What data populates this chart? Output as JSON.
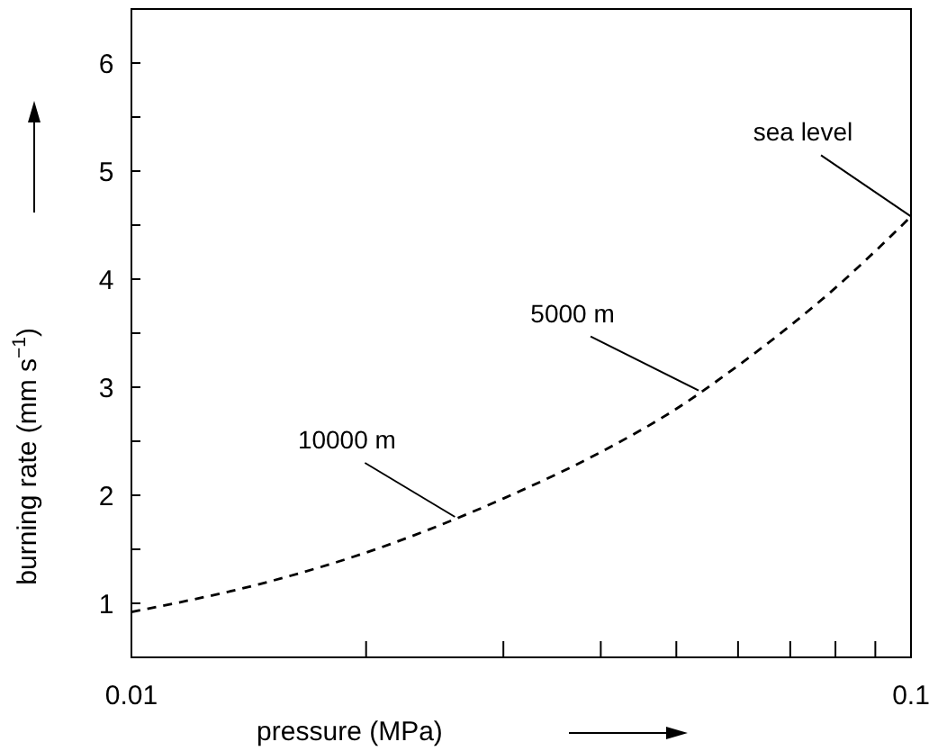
{
  "chart_data": {
    "type": "line",
    "xlabel": "pressure (MPa)",
    "ylabel": "burning rate (mm s$^{−1}$)",
    "log": "x",
    "xlim": [
      0.01,
      0.1
    ],
    "ylim": [
      0.5,
      6.5
    ],
    "xticks": [
      0.01,
      {
        "value": 0.02,
        "label": null
      },
      {
        "value": 0.03,
        "label": null
      },
      {
        "value": 0.04,
        "label": null
      },
      {
        "value": 0.05,
        "label": null
      },
      {
        "value": 0.06,
        "label": null
      },
      {
        "value": 0.07,
        "label": null
      },
      {
        "value": 0.08,
        "label": null
      },
      {
        "value": 0.09,
        "label": null
      },
      0.1
    ],
    "yticks": [
      1,
      {
        "value": 1.5,
        "label": null
      },
      2,
      {
        "value": 2.5,
        "label": null
      },
      3,
      {
        "value": 3.5,
        "label": null
      },
      4,
      {
        "value": 4.5,
        "label": null
      },
      5,
      {
        "value": 5.5,
        "label": null
      },
      6
    ],
    "marker": "none",
    "line_style": "dashed",
    "series": [
      {
        "color": "#000000",
        "x": [
          0.01,
          0.015,
          0.02,
          0.03,
          0.04,
          0.05,
          0.06,
          0.07,
          0.08,
          0.09,
          0.1
        ],
        "values": [
          0.92,
          1.2,
          1.47,
          1.97,
          2.4,
          2.8,
          3.2,
          3.57,
          3.92,
          4.26,
          4.58
        ]
      }
    ],
    "annotations": [
      {
        "text": "10000 m",
        "x": 0.026,
        "y": 1.8
      },
      {
        "text": "5000 m",
        "x": 0.0534,
        "y": 2.97
      },
      {
        "text": "sea level",
        "x": 0.1,
        "y": 4.58
      }
    ]
  }
}
